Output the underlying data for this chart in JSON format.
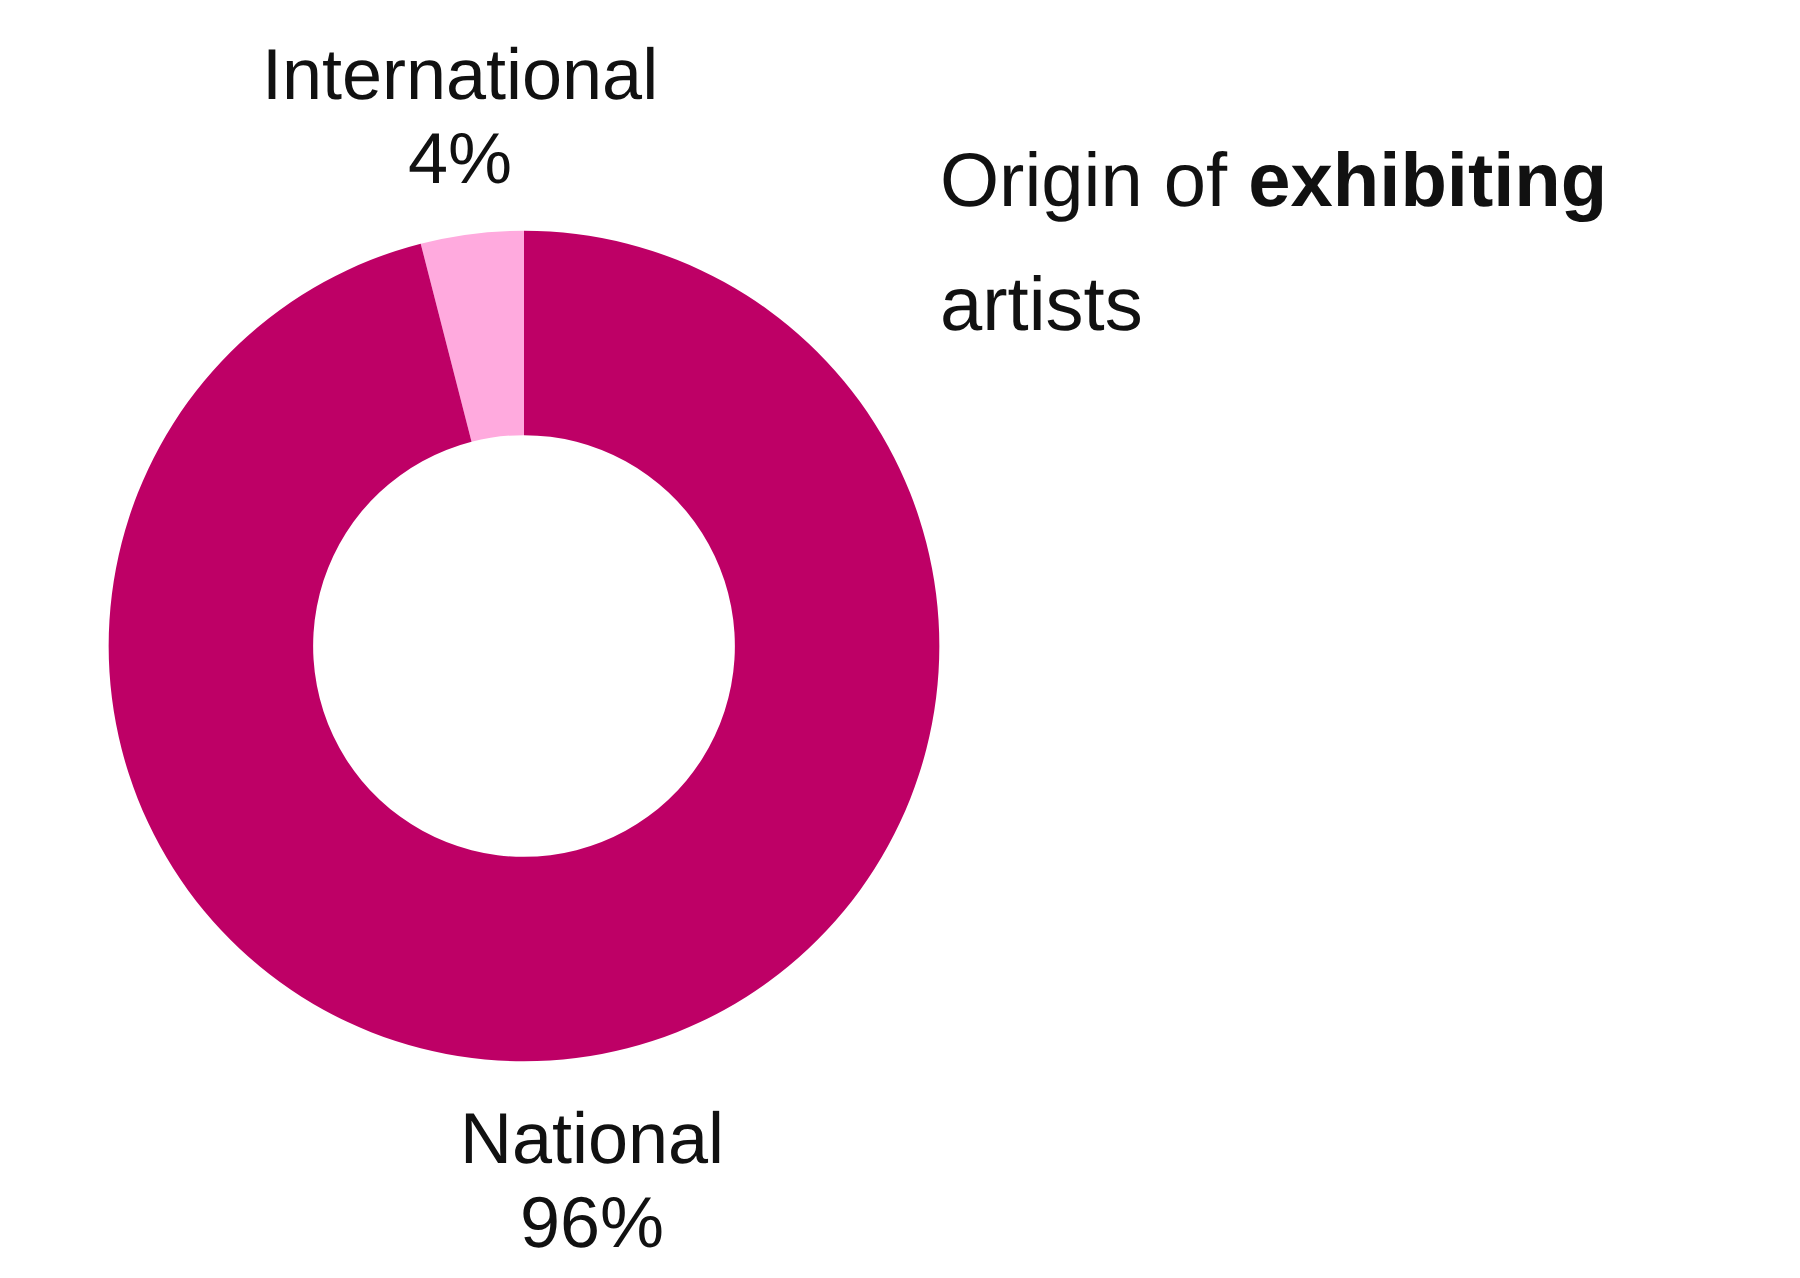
{
  "chart_data": {
    "type": "donut",
    "title": "Origin of exhibiting artists",
    "categories": [
      "International",
      "National"
    ],
    "values": [
      4,
      96
    ],
    "value_labels": [
      "4%",
      "96%"
    ],
    "colors": [
      "#ffaade",
      "#be0066"
    ],
    "legend": false
  }
}
